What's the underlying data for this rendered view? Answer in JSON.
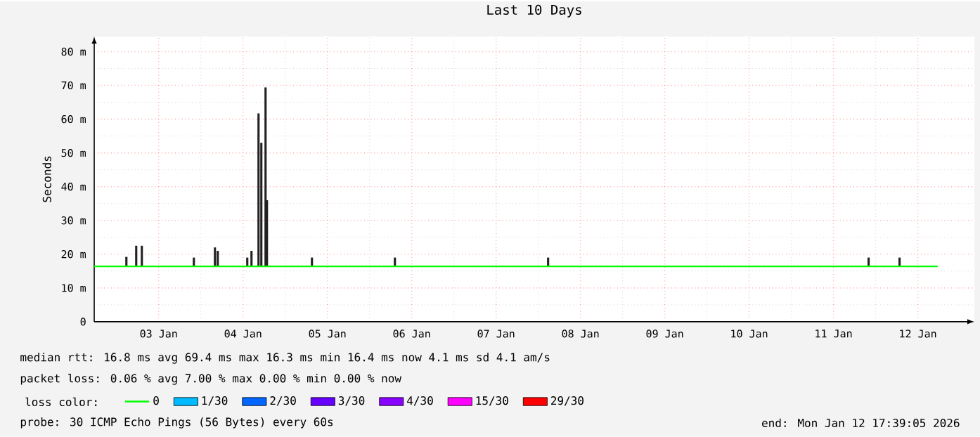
{
  "chart_data": {
    "type": "line",
    "title": "Last 10 Days",
    "ylabel": "Seconds",
    "xlim": [
      "2026-01-02T17:39",
      "2026-01-13T04:05"
    ],
    "ylim": [
      0,
      84.5
    ],
    "xticks": [
      {
        "value": "2026-01-03T12:00",
        "label": "03 Jan"
      },
      {
        "value": "2026-01-04T12:00",
        "label": "04 Jan"
      },
      {
        "value": "2026-01-05T12:00",
        "label": "05 Jan"
      },
      {
        "value": "2026-01-06T12:00",
        "label": "06 Jan"
      },
      {
        "value": "2026-01-07T12:00",
        "label": "07 Jan"
      },
      {
        "value": "2026-01-08T12:00",
        "label": "08 Jan"
      },
      {
        "value": "2026-01-09T12:00",
        "label": "09 Jan"
      },
      {
        "value": "2026-01-10T12:00",
        "label": "10 Jan"
      },
      {
        "value": "2026-01-11T12:00",
        "label": "11 Jan"
      },
      {
        "value": "2026-01-12T12:00",
        "label": "12 Jan"
      }
    ],
    "yticks": [
      0,
      {
        "value": 10,
        "label": "10 m"
      },
      {
        "value": 20,
        "label": "20 m"
      },
      {
        "value": 30,
        "label": "30 m"
      },
      {
        "value": 40,
        "label": "40 m"
      },
      {
        "value": 50,
        "label": "50 m"
      },
      {
        "value": 60,
        "label": "60 m"
      },
      {
        "value": 70,
        "label": "70 m"
      },
      {
        "value": 80,
        "label": "80 m"
      }
    ],
    "grid": true,
    "legend": "bottom",
    "legend_title": "loss color:",
    "marker": "none",
    "series": [
      {
        "type": "bar",
        "color": "#222222",
        "x": [
          "2026-01-03T02:48",
          "2026-01-03T05:36",
          "2026-01-03T07:12",
          "2026-01-03T22:00",
          "2026-01-04T04:00",
          "2026-01-04T04:48",
          "2026-01-04T13:12",
          "2026-01-04T14:24",
          "2026-01-04T16:24",
          "2026-01-04T17:12",
          "2026-01-04T18:24",
          "2026-01-04T18:48",
          "2026-01-05T07:36",
          "2026-01-06T07:12",
          "2026-01-08T02:48",
          "2026-01-11T22:00",
          "2026-01-12T06:48"
        ],
        "base": [
          16.4,
          16.4,
          16.4,
          16.4,
          16.4,
          16.4,
          16.4,
          16.4,
          16.4,
          16.4,
          16.4,
          16.4,
          16.4,
          16.4,
          16.4,
          16.4,
          16.4
        ],
        "values": [
          2.8,
          6.1,
          6.1,
          2.6,
          5.6,
          4.6,
          2.6,
          4.6,
          45.3,
          36.6,
          53.0,
          19.6,
          2.6,
          2.6,
          2.6,
          2.6,
          2.6
        ]
      },
      {
        "name": "0",
        "color": "#00ff00",
        "x": [
          "2026-01-02T17:39",
          "2026-01-12T17:39"
        ],
        "values": [
          16.4,
          16.4
        ]
      },
      {
        "name": "1/30",
        "color": "#00bbff",
        "values": [
          null
        ]
      },
      {
        "name": "2/30",
        "color": "#0066ff",
        "values": [
          null
        ]
      },
      {
        "name": "3/30",
        "color": "#6600ff",
        "values": [
          null
        ]
      },
      {
        "name": "4/30",
        "color": "#8800ff",
        "values": [
          null
        ]
      },
      {
        "name": "15/30",
        "color": "#ff00ff",
        "values": [
          null
        ]
      },
      {
        "name": "29/30",
        "color": "#ff0000",
        "values": [
          null
        ]
      }
    ],
    "annotations": [
      "median rtt:  16.8 ms avg  69.4 ms max  16.3 ms min  16.4 ms now  4.1 ms sd  4.1   am/s",
      "packet loss: 0.06 % avg  7.00 % max  0.00 % min  0.00 % now",
      "probe:       30 ICMP Echo Pings (56 Bytes) every 60s",
      "end: Mon Jan 12 17:39:05 2026"
    ]
  }
}
